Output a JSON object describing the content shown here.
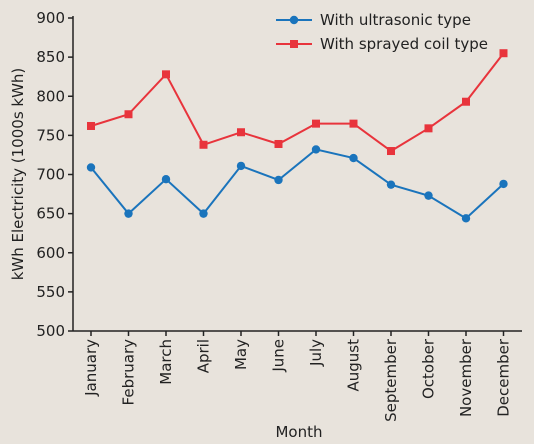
{
  "chart_data": {
    "type": "line",
    "title": "",
    "xlabel": "Month",
    "ylabel": "kWh Electricity (1000s kWh)",
    "ylim": [
      500,
      900
    ],
    "yticks": [
      500,
      550,
      600,
      650,
      700,
      750,
      800,
      850,
      900
    ],
    "categories": [
      "January",
      "February",
      "March",
      "April",
      "May",
      "June",
      "July",
      "August",
      "September",
      "October",
      "November",
      "December"
    ],
    "grid": false,
    "legend_position": "top-right",
    "series": [
      {
        "name": "With ultrasonic type",
        "color": "#1a74bc",
        "marker": "circle",
        "values": [
          709,
          650,
          694,
          650,
          711,
          693,
          732,
          721,
          687,
          673,
          644,
          688
        ]
      },
      {
        "name": "With sprayed coil type",
        "color": "#e8343c",
        "marker": "square",
        "values": [
          762,
          777,
          828,
          738,
          754,
          739,
          765,
          765,
          730,
          759,
          793,
          855
        ]
      }
    ]
  }
}
